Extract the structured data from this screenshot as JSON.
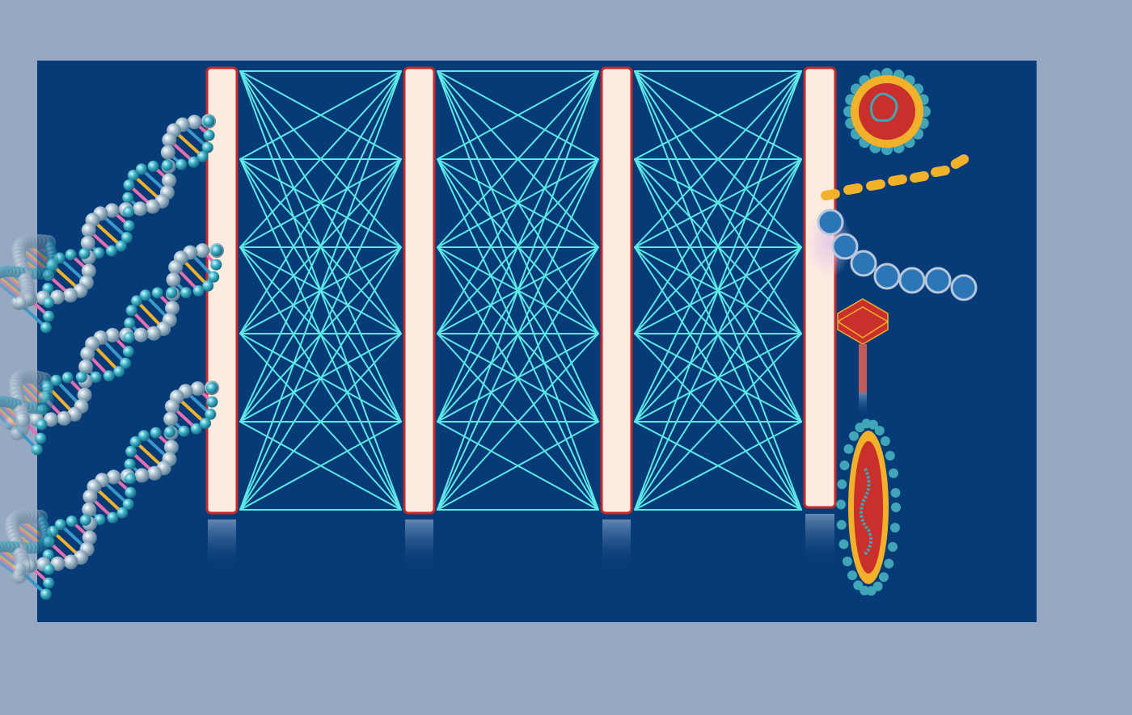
{
  "colors": {
    "page_bg": "#97a8c2",
    "panel_bg": "#063b77",
    "layer_fill": "#fdebe0",
    "layer_border": "#c42a2c",
    "connection": "#5de8e8",
    "dna_bead": "#9fb8c8",
    "dna_bead_dark": "#2e97a8",
    "dna_rung_a": "#f2b12a",
    "dna_rung_b": "#e76fb0",
    "dna_rung_c": "#3a98c8",
    "virus_core": "#c9302c",
    "virus_ring": "#f2b12a",
    "virus_spike": "#3fa5b7",
    "chain_bead": "#f2b12a",
    "ring_bead_fill": "#2c76b8",
    "ring_bead_stroke": "#b9c7dc"
  },
  "network": {
    "layer_count": 4,
    "nodes_per_column": 6
  },
  "icons": {
    "input": "dna-double-helix-icon",
    "outputs": [
      "spherical-virus-icon",
      "protein-chain-icon",
      "bacteriophage-icon",
      "filovirus-icon"
    ]
  }
}
